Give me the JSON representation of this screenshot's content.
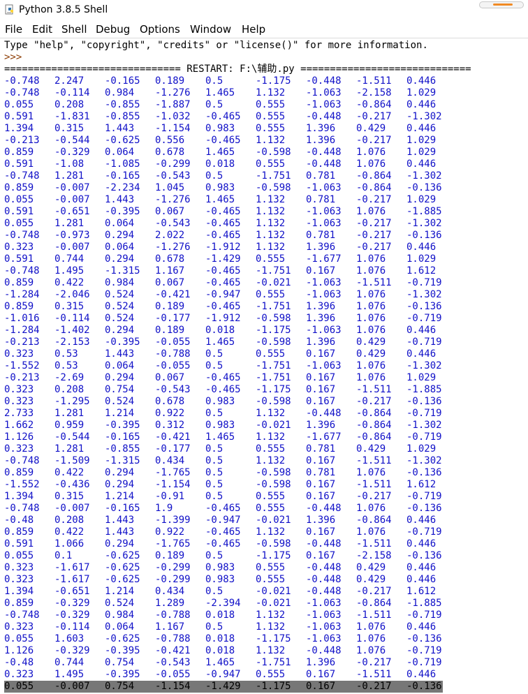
{
  "window": {
    "title": "Python 3.8.5 Shell",
    "icon": "python-file-icon",
    "minimize_accent": "#f08a24"
  },
  "menu": [
    "File",
    "Edit",
    "Shell",
    "Debug",
    "Options",
    "Window",
    "Help"
  ],
  "console": {
    "banner": "Type \"help\", \"copyright\", \"credits\" or \"license()\" for more information.",
    "prompt": ">>>",
    "restart": "============================== RESTART: F:\\辅助.py =============================",
    "rows": [
      [
        "-0.748",
        "2.247",
        "-0.165",
        "0.189",
        "0.5",
        "-1.175",
        "-0.448",
        "-1.511",
        "0.446"
      ],
      [
        "-0.748",
        "-0.114",
        "0.984",
        "-1.276",
        "1.465",
        "1.132",
        "-1.063",
        "-2.158",
        "1.029"
      ],
      [
        "0.055",
        "0.208",
        "-0.855",
        "-1.887",
        "0.5",
        "0.555",
        "-1.063",
        "-0.864",
        "0.446"
      ],
      [
        "0.591",
        "-1.831",
        "-0.855",
        "-1.032",
        "-0.465",
        "0.555",
        "-0.448",
        "-0.217",
        "-1.302"
      ],
      [
        "1.394",
        "0.315",
        "1.443",
        "-1.154",
        "0.983",
        "0.555",
        "1.396",
        "0.429",
        "0.446"
      ],
      [
        "-0.213",
        "-0.544",
        "-0.625",
        "0.556",
        "-0.465",
        "1.132",
        "1.396",
        "-0.217",
        "1.029"
      ],
      [
        "0.859",
        "-0.329",
        "0.064",
        "0.678",
        "1.465",
        "-0.598",
        "-0.448",
        "1.076",
        "1.029"
      ],
      [
        "0.591",
        "-1.08",
        "-1.085",
        "-0.299",
        "0.018",
        "0.555",
        "-0.448",
        "1.076",
        "0.446"
      ],
      [
        "-0.748",
        "1.281",
        "-0.165",
        "-0.543",
        "0.5",
        "-1.751",
        "0.781",
        "-0.864",
        "-1.302"
      ],
      [
        "0.859",
        "-0.007",
        "-2.234",
        "1.045",
        "0.983",
        "-0.598",
        "-1.063",
        "-0.864",
        "-0.136"
      ],
      [
        "0.055",
        "-0.007",
        "1.443",
        "-1.276",
        "1.465",
        "1.132",
        "0.781",
        "-0.217",
        "1.029"
      ],
      [
        "0.591",
        "-0.651",
        "-0.395",
        "0.067",
        "-0.465",
        "1.132",
        "-1.063",
        "1.076",
        "-1.885"
      ],
      [
        "0.055",
        "1.281",
        "0.064",
        "-0.543",
        "-0.465",
        "1.132",
        "-1.063",
        "-0.217",
        "-1.302"
      ],
      [
        "-0.748",
        "-0.973",
        "0.294",
        "2.022",
        "-0.465",
        "1.132",
        "0.781",
        "-0.217",
        "-0.136"
      ],
      [
        "0.323",
        "-0.007",
        "0.064",
        "-1.276",
        "-1.912",
        "1.132",
        "1.396",
        "-0.217",
        "0.446"
      ],
      [
        "0.591",
        "0.744",
        "0.294",
        "0.678",
        "-1.429",
        "0.555",
        "-1.677",
        "1.076",
        "1.029"
      ],
      [
        "-0.748",
        "1.495",
        "-1.315",
        "1.167",
        "-0.465",
        "-1.751",
        "0.167",
        "1.076",
        "1.612"
      ],
      [
        "0.859",
        "0.422",
        "0.984",
        "0.067",
        "-0.465",
        "-0.021",
        "-1.063",
        "-1.511",
        "-0.719"
      ],
      [
        "-1.284",
        "-2.046",
        "0.524",
        "-0.421",
        "-0.947",
        "0.555",
        "-1.063",
        "1.076",
        "-1.302"
      ],
      [
        "0.859",
        "0.315",
        "0.524",
        "0.189",
        "-0.465",
        "-1.751",
        "1.396",
        "1.076",
        "-0.136"
      ],
      [
        "-1.016",
        "-0.114",
        "0.524",
        "-0.177",
        "-1.912",
        "-0.598",
        "1.396",
        "1.076",
        "-0.719"
      ],
      [
        "-1.284",
        "-1.402",
        "0.294",
        "0.189",
        "0.018",
        "-1.175",
        "-1.063",
        "1.076",
        "0.446"
      ],
      [
        "-0.213",
        "-2.153",
        "-0.395",
        "-0.055",
        "1.465",
        "-0.598",
        "1.396",
        "0.429",
        "-0.719"
      ],
      [
        "0.323",
        "0.53",
        "1.443",
        "-0.788",
        "0.5",
        "0.555",
        "0.167",
        "0.429",
        "0.446"
      ],
      [
        "-1.552",
        "0.53",
        "0.064",
        "-0.055",
        "0.5",
        "-1.751",
        "-1.063",
        "1.076",
        "-1.302"
      ],
      [
        "-0.213",
        "-2.69",
        "0.294",
        "0.067",
        "-0.465",
        "-1.751",
        "0.167",
        "1.076",
        "1.029"
      ],
      [
        "0.323",
        "0.208",
        "0.754",
        "-0.543",
        "-0.465",
        "-1.175",
        "0.167",
        "-1.511",
        "-1.885"
      ],
      [
        "0.323",
        "-1.295",
        "0.524",
        "0.678",
        "0.983",
        "-0.598",
        "0.167",
        "-0.217",
        "-0.136"
      ],
      [
        "2.733",
        "1.281",
        "1.214",
        "0.922",
        "0.5",
        "1.132",
        "-0.448",
        "-0.864",
        "-0.719"
      ],
      [
        "1.662",
        "0.959",
        "-0.395",
        "0.312",
        "0.983",
        "-0.021",
        "1.396",
        "-0.864",
        "-1.302"
      ],
      [
        "1.126",
        "-0.544",
        "-0.165",
        "-0.421",
        "1.465",
        "1.132",
        "-1.677",
        "-0.864",
        "-0.719"
      ],
      [
        "0.323",
        "1.281",
        "-0.855",
        "-0.177",
        "0.5",
        "0.555",
        "0.781",
        "0.429",
        "1.029"
      ],
      [
        "-0.748",
        "-1.509",
        "-1.315",
        "0.434",
        "0.5",
        "1.132",
        "0.167",
        "-1.511",
        "-1.302"
      ],
      [
        "0.859",
        "0.422",
        "0.294",
        "-1.765",
        "0.5",
        "-0.598",
        "0.781",
        "1.076",
        "-0.136"
      ],
      [
        "-1.552",
        "-0.436",
        "0.294",
        "-1.154",
        "0.5",
        "-0.598",
        "0.167",
        "-1.511",
        "1.612"
      ],
      [
        "1.394",
        "0.315",
        "1.214",
        "-0.91",
        "0.5",
        "0.555",
        "0.167",
        "-0.217",
        "-0.719"
      ],
      [
        "-0.748",
        "-0.007",
        "-0.165",
        "1.9",
        "-0.465",
        "0.555",
        "-0.448",
        "1.076",
        "-0.136"
      ],
      [
        "-0.48",
        "0.208",
        "1.443",
        "-1.399",
        "-0.947",
        "-0.021",
        "1.396",
        "-0.864",
        "0.446"
      ],
      [
        "0.859",
        "0.422",
        "1.443",
        "0.922",
        "-0.465",
        "1.132",
        "0.167",
        "1.076",
        "-0.719"
      ],
      [
        "0.591",
        "1.066",
        "0.294",
        "-1.765",
        "-0.465",
        "-0.598",
        "-0.448",
        "-1.511",
        "0.446"
      ],
      [
        "0.055",
        "0.1",
        "-0.625",
        "0.189",
        "0.5",
        "-1.175",
        "0.167",
        "-2.158",
        "-0.136"
      ],
      [
        "0.323",
        "-1.617",
        "-0.625",
        "-0.299",
        "0.983",
        "0.555",
        "-0.448",
        "0.429",
        "0.446"
      ],
      [
        "0.323",
        "-1.617",
        "-0.625",
        "-0.299",
        "0.983",
        "0.555",
        "-0.448",
        "0.429",
        "0.446"
      ],
      [
        "1.394",
        "-0.651",
        "1.214",
        "0.434",
        "0.5",
        "-0.021",
        "-0.448",
        "-0.217",
        "1.612"
      ],
      [
        "0.859",
        "-0.329",
        "0.524",
        "1.289",
        "-2.394",
        "-0.021",
        "-1.063",
        "-0.864",
        "-1.885"
      ],
      [
        "-0.748",
        "-0.329",
        "0.984",
        "-0.788",
        "0.018",
        "1.132",
        "-1.063",
        "-1.511",
        "-0.719"
      ],
      [
        "0.323",
        "-0.114",
        "0.064",
        "1.167",
        "0.5",
        "1.132",
        "-1.063",
        "1.076",
        "0.446"
      ],
      [
        "0.055",
        "1.603",
        "-0.625",
        "-0.788",
        "0.018",
        "-1.175",
        "-1.063",
        "1.076",
        "-0.136"
      ],
      [
        "1.126",
        "-0.329",
        "-0.395",
        "-0.421",
        "0.018",
        "1.132",
        "-0.448",
        "1.076",
        "-0.719"
      ],
      [
        "-0.48",
        "0.744",
        "0.754",
        "-0.543",
        "1.465",
        "-1.751",
        "1.396",
        "-0.217",
        "-0.719"
      ],
      [
        "0.323",
        "1.495",
        "-0.395",
        "-0.055",
        "-0.947",
        "0.555",
        "0.167",
        "-1.511",
        "0.446"
      ],
      [
        "0.055",
        "-0.007",
        "0.754",
        "-1.154",
        "-1.429",
        "-1.175",
        "0.167",
        "-0.217",
        "-0.136"
      ]
    ]
  }
}
